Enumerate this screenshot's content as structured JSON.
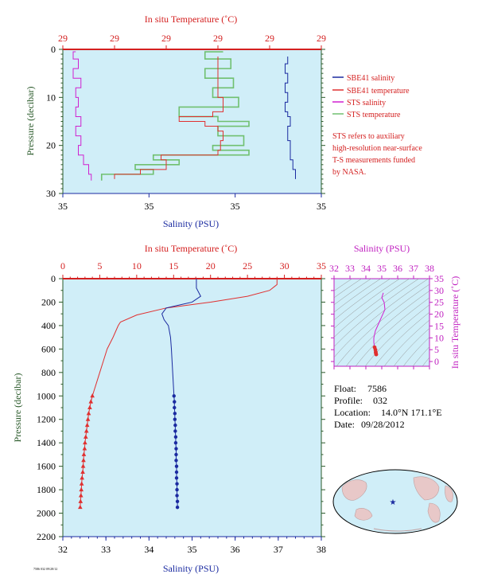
{
  "colors": {
    "plot_bg": "#d0eef8",
    "salinity": "#1a2aa0",
    "temperature": "#e03030",
    "sts_salinity": "#d020d0",
    "sts_temperature": "#70c070",
    "axis_red": "#d42020",
    "axis_green": "#2a5a2a",
    "axis_blue": "#1a2aa0",
    "axis_magenta": "#c020c0"
  },
  "chart_data": [
    {
      "id": "near-surface",
      "type": "line",
      "x_top_label": "In situ Temperature (˚C)",
      "x_top_ticks": [
        "29",
        "29",
        "29",
        "29",
        "29",
        "29"
      ],
      "x_bottom_label": "Salinity (PSU)",
      "x_bottom_ticks": [
        "35",
        "35",
        "35",
        "35"
      ],
      "ylabel": "Pressure (decibar)",
      "ylim": [
        30,
        0
      ],
      "y_ticks": [
        "0",
        "10",
        "20",
        "30"
      ],
      "series": [
        {
          "name": "SBE41 salinity",
          "points": [
            [
              0.87,
              1.5
            ],
            [
              0.87,
              3
            ],
            [
              0.86,
              5
            ],
            [
              0.87,
              7
            ],
            [
              0.86,
              9
            ],
            [
              0.87,
              11
            ],
            [
              0.86,
              13
            ],
            [
              0.87,
              14
            ],
            [
              0.88,
              16
            ],
            [
              0.87,
              17
            ],
            [
              0.87,
              19
            ],
            [
              0.88,
              21
            ],
            [
              0.88,
              23
            ],
            [
              0.89,
              25
            ],
            [
              0.9,
              26
            ],
            [
              0.9,
              27
            ]
          ]
        },
        {
          "name": "SBE41 temperature",
          "points": [
            [
              0.6,
              1.5
            ],
            [
              0.6,
              5
            ],
            [
              0.6,
              10
            ],
            [
              0.62,
              13
            ],
            [
              0.58,
              14
            ],
            [
              0.45,
              15
            ],
            [
              0.55,
              16
            ],
            [
              0.6,
              17
            ],
            [
              0.62,
              19
            ],
            [
              0.61,
              21
            ],
            [
              0.6,
              22
            ],
            [
              0.38,
              23
            ],
            [
              0.4,
              25
            ],
            [
              0.3,
              26
            ],
            [
              0.2,
              27
            ]
          ]
        },
        {
          "name": "STS salinity",
          "points": [
            [
              0.05,
              0.5
            ],
            [
              0.04,
              2
            ],
            [
              0.06,
              4
            ],
            [
              0.04,
              6
            ],
            [
              0.07,
              8
            ],
            [
              0.05,
              10
            ],
            [
              0.06,
              12
            ],
            [
              0.05,
              14
            ],
            [
              0.07,
              16
            ],
            [
              0.05,
              18
            ],
            [
              0.07,
              20
            ],
            [
              0.06,
              22
            ],
            [
              0.08,
              24
            ],
            [
              0.1,
              26
            ],
            [
              0.11,
              27.3
            ]
          ]
        },
        {
          "name": "STS temperature",
          "points": [
            [
              0.62,
              0.5
            ],
            [
              0.55,
              2
            ],
            [
              0.65,
              4
            ],
            [
              0.55,
              6
            ],
            [
              0.66,
              8
            ],
            [
              0.58,
              10
            ],
            [
              0.68,
              12
            ],
            [
              0.45,
              14
            ],
            [
              0.6,
              15
            ],
            [
              0.72,
              16
            ],
            [
              0.6,
              18
            ],
            [
              0.7,
              20
            ],
            [
              0.58,
              21
            ],
            [
              0.72,
              22
            ],
            [
              0.35,
              23
            ],
            [
              0.45,
              24
            ],
            [
              0.28,
              25
            ],
            [
              0.35,
              26
            ],
            [
              0.15,
              27.3
            ]
          ]
        }
      ],
      "legend": [
        "SBE41 salinity",
        "SBE41 temperature",
        "STS salinity",
        "STS temperature"
      ],
      "note": [
        "STS refers to auxiliary",
        "high-resolution near-surface",
        "T-S measurements funded",
        "by NASA."
      ]
    },
    {
      "id": "full-profile",
      "type": "line",
      "x_top_label": "In situ Temperature (˚C)",
      "x_top_ticks": [
        "0",
        "5",
        "10",
        "15",
        "20",
        "25",
        "30",
        "35"
      ],
      "xlim_temperature": [
        0,
        35
      ],
      "x_bottom_label": "Salinity (PSU)",
      "x_bottom_ticks": [
        "32",
        "33",
        "34",
        "35",
        "36",
        "37",
        "38"
      ],
      "xlim_salinity": [
        32,
        38
      ],
      "ylabel": "Pressure (decibar)",
      "ylim": [
        2200,
        0
      ],
      "y_ticks": [
        "0",
        "200",
        "400",
        "600",
        "800",
        "1000",
        "1200",
        "1400",
        "1600",
        "1800",
        "2000",
        "2200"
      ],
      "series": [
        {
          "name": "temperature",
          "points": [
            [
              29.0,
              0
            ],
            [
              29.0,
              50
            ],
            [
              28.6,
              70
            ],
            [
              28.0,
              100
            ],
            [
              25.0,
              150
            ],
            [
              20.0,
              200
            ],
            [
              14.0,
              250
            ],
            [
              10.0,
              310
            ],
            [
              7.8,
              370
            ],
            [
              7.5,
              400
            ],
            [
              6.8,
              500
            ],
            [
              6.0,
              600
            ],
            [
              5.5,
              700
            ],
            [
              5.0,
              800
            ],
            [
              4.5,
              900
            ],
            [
              4.0,
              1000
            ]
          ]
        },
        {
          "name": "salinity",
          "points": [
            [
              35.1,
              0
            ],
            [
              35.1,
              80
            ],
            [
              35.2,
              150
            ],
            [
              35.0,
              200
            ],
            [
              34.4,
              250
            ],
            [
              34.3,
              300
            ],
            [
              34.35,
              350
            ],
            [
              34.45,
              400
            ],
            [
              34.5,
              500
            ],
            [
              34.52,
              600
            ],
            [
              34.55,
              800
            ],
            [
              34.58,
              1000
            ]
          ]
        },
        {
          "name": "temperature-bottle",
          "points": [
            [
              4.0,
              1000
            ],
            [
              3.8,
              1050
            ],
            [
              3.65,
              1100
            ],
            [
              3.5,
              1150
            ],
            [
              3.4,
              1200
            ],
            [
              3.3,
              1250
            ],
            [
              3.2,
              1300
            ],
            [
              3.1,
              1350
            ],
            [
              3.0,
              1400
            ],
            [
              2.95,
              1450
            ],
            [
              2.85,
              1500
            ],
            [
              2.8,
              1550
            ],
            [
              2.75,
              1600
            ],
            [
              2.7,
              1650
            ],
            [
              2.6,
              1700
            ],
            [
              2.55,
              1750
            ],
            [
              2.5,
              1800
            ],
            [
              2.45,
              1850
            ],
            [
              2.4,
              1900
            ],
            [
              2.35,
              1950
            ]
          ]
        },
        {
          "name": "salinity-bottle",
          "points": [
            [
              34.58,
              1000
            ],
            [
              34.59,
              1050
            ],
            [
              34.59,
              1100
            ],
            [
              34.6,
              1150
            ],
            [
              34.6,
              1200
            ],
            [
              34.61,
              1250
            ],
            [
              34.61,
              1300
            ],
            [
              34.62,
              1350
            ],
            [
              34.62,
              1400
            ],
            [
              34.63,
              1450
            ],
            [
              34.63,
              1500
            ],
            [
              34.63,
              1550
            ],
            [
              34.64,
              1600
            ],
            [
              34.64,
              1650
            ],
            [
              34.64,
              1700
            ],
            [
              34.65,
              1750
            ],
            [
              34.65,
              1800
            ],
            [
              34.65,
              1850
            ],
            [
              34.66,
              1900
            ],
            [
              34.66,
              1950
            ]
          ]
        }
      ]
    },
    {
      "id": "ts-diagram",
      "type": "scatter",
      "x_label": "Salinity (PSU)",
      "x_ticks": [
        "32",
        "33",
        "34",
        "35",
        "36",
        "37",
        "38"
      ],
      "xlim": [
        32,
        38
      ],
      "y_label": "In situ Temperature (˚C)",
      "y_ticks": [
        "0",
        "5",
        "10",
        "15",
        "20",
        "25",
        "30",
        "35"
      ],
      "ylim": [
        -2,
        35
      ],
      "series": [
        {
          "name": "profile",
          "points": [
            [
              35.1,
              29
            ],
            [
              35.0,
              27
            ],
            [
              35.15,
              25
            ],
            [
              35.2,
              22
            ],
            [
              35.0,
              19
            ],
            [
              34.8,
              16
            ],
            [
              34.6,
              13
            ],
            [
              34.5,
              10
            ],
            [
              34.5,
              8
            ],
            [
              34.55,
              6
            ],
            [
              34.6,
              5
            ],
            [
              34.62,
              4
            ],
            [
              34.63,
              3.5
            ],
            [
              34.65,
              3
            ]
          ]
        }
      ]
    }
  ],
  "float_info": {
    "float_label": "Float:",
    "float_value": "7586",
    "profile_label": "Profile:",
    "profile_value": "032",
    "location_label": "Location:",
    "location_value": "14.0°N  171.1°E",
    "date_label": "Date:",
    "date_value": "09/28/2012"
  },
  "footer_text": "7586 032 09/28/12",
  "map": {
    "marker": "float-location-star"
  }
}
